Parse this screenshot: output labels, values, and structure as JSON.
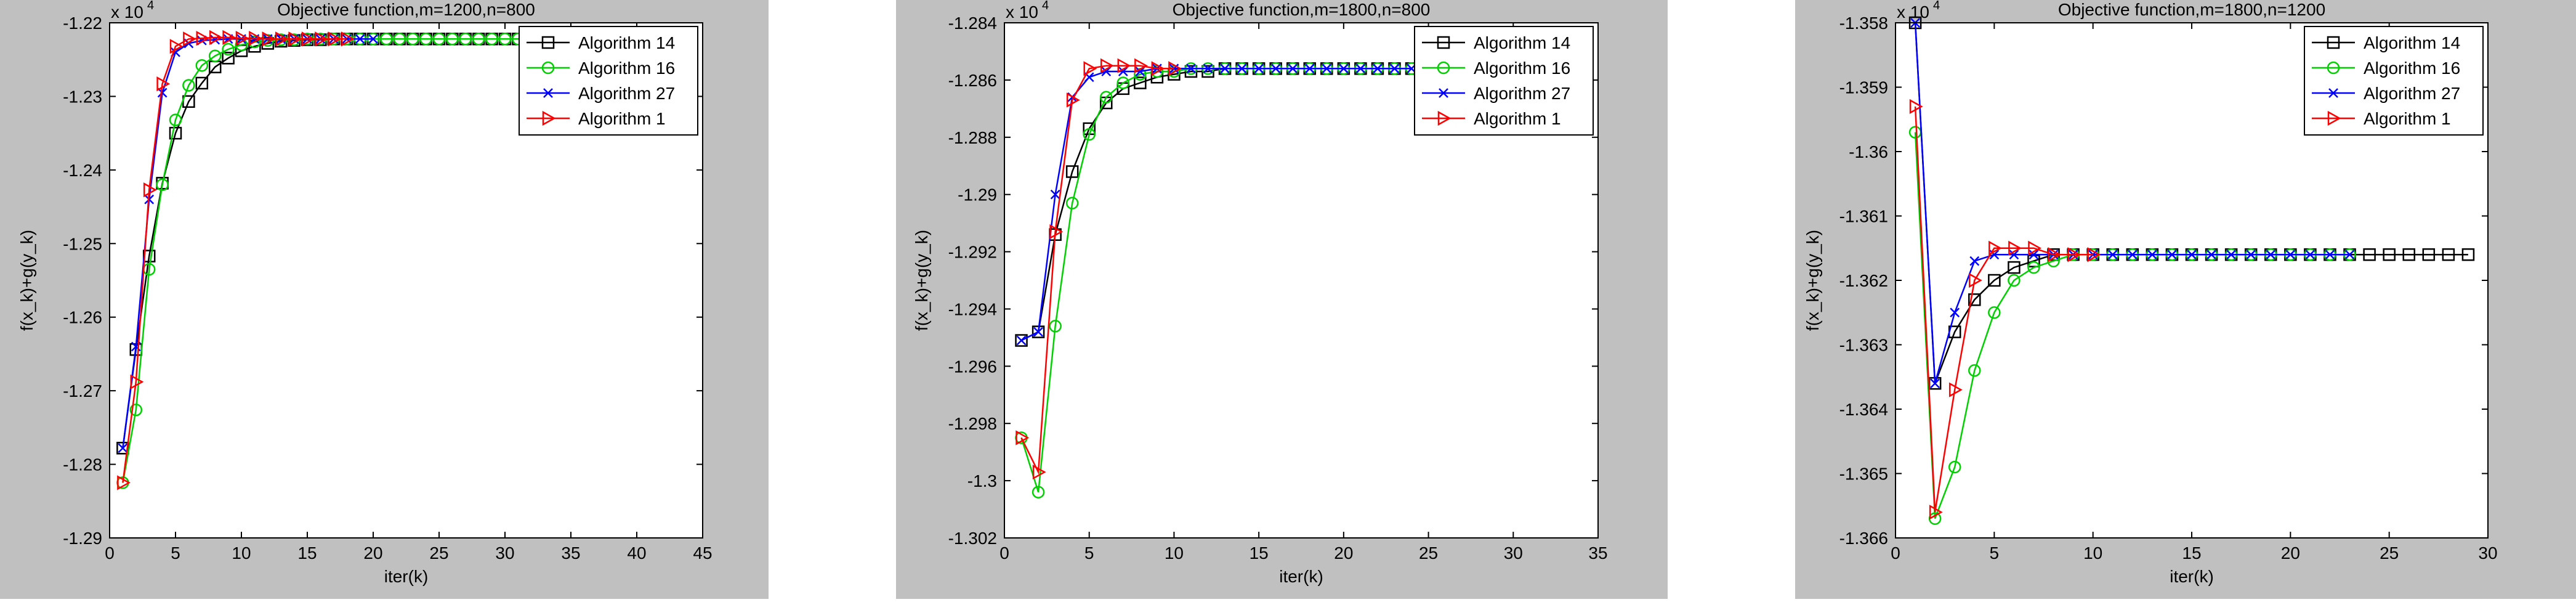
{
  "chart_data": [
    {
      "type": "line",
      "title": "Objective function,m=1200,n=800",
      "xlabel": "iter(k)",
      "ylabel": "f(x_k)+g(y_k)",
      "exponent_label": "x 10",
      "exponent_power": "4",
      "xlim": [
        0,
        45
      ],
      "ylim": [
        -1.29,
        -1.22
      ],
      "xticks": [
        0,
        5,
        10,
        15,
        20,
        25,
        30,
        35,
        40,
        45
      ],
      "yticks": [
        -1.29,
        -1.28,
        -1.27,
        -1.26,
        -1.25,
        -1.24,
        -1.23,
        -1.22
      ],
      "xtick_labels": [
        "0",
        "5",
        "10",
        "15",
        "20",
        "25",
        "30",
        "35",
        "40",
        "45"
      ],
      "ytick_labels": [
        "-1.29",
        "-1.28",
        "-1.27",
        "-1.26",
        "-1.25",
        "-1.24",
        "-1.23",
        "-1.22"
      ],
      "legend_position": "top-right",
      "series": [
        {
          "name": "Algorithm 14",
          "color": "#000000",
          "marker": "square",
          "x": [
            1,
            2,
            3,
            4,
            5,
            6,
            7,
            8,
            9,
            10,
            11,
            12,
            13,
            14,
            15,
            16,
            17,
            18,
            19,
            20,
            21,
            22,
            23,
            24,
            25,
            26,
            27,
            28,
            29,
            30,
            31,
            32,
            33,
            34,
            35,
            36,
            37,
            38,
            39,
            40,
            41
          ],
          "y": [
            -1.2778,
            -1.2644,
            -1.2517,
            -1.2418,
            -1.235,
            -1.2307,
            -1.2282,
            -1.226,
            -1.2248,
            -1.2238,
            -1.2232,
            -1.2228,
            -1.2225,
            -1.2224,
            -1.2223,
            -1.2223,
            -1.2222,
            -1.2222,
            -1.2222,
            -1.2222,
            -1.2222,
            -1.2222,
            -1.2222,
            -1.2222,
            -1.2222,
            -1.2222,
            -1.2222,
            -1.2222,
            -1.2222,
            -1.2222,
            -1.2222,
            -1.2222,
            -1.2222,
            -1.2222,
            -1.2222,
            -1.2222,
            -1.2222,
            -1.2222,
            -1.2222,
            -1.2222,
            -1.2222
          ]
        },
        {
          "name": "Algorithm 16",
          "color": "#00d000",
          "marker": "circle",
          "x": [
            1,
            2,
            3,
            4,
            5,
            6,
            7,
            8,
            9,
            10,
            11,
            12,
            13,
            14,
            15,
            16,
            17,
            18,
            19,
            20,
            21,
            22,
            23,
            24,
            25,
            26,
            27,
            28,
            29,
            30,
            31,
            32,
            33,
            34,
            35,
            36,
            37,
            38,
            39,
            40
          ],
          "y": [
            -1.2825,
            -1.2726,
            -1.2535,
            -1.242,
            -1.2332,
            -1.2285,
            -1.2258,
            -1.2245,
            -1.2236,
            -1.223,
            -1.2226,
            -1.2224,
            -1.2223,
            -1.2223,
            -1.2222,
            -1.2222,
            -1.2222,
            -1.2222,
            -1.2222,
            -1.2222,
            -1.2222,
            -1.2222,
            -1.2222,
            -1.2222,
            -1.2222,
            -1.2222,
            -1.2222,
            -1.2222,
            -1.2222,
            -1.2222,
            -1.2222,
            -1.2222,
            -1.2222,
            -1.2222,
            -1.2222,
            -1.2222,
            -1.2222,
            -1.2222,
            -1.2222,
            -1.2222
          ]
        },
        {
          "name": "Algorithm 27",
          "color": "#0000ff",
          "marker": "x",
          "x": [
            1,
            2,
            3,
            4,
            5,
            6,
            7,
            8,
            9,
            10,
            11,
            12,
            13,
            14,
            15,
            16,
            17,
            18,
            19,
            20
          ],
          "y": [
            -1.2778,
            -1.264,
            -1.244,
            -1.2295,
            -1.224,
            -1.2228,
            -1.2224,
            -1.2223,
            -1.2222,
            -1.2222,
            -1.2222,
            -1.2222,
            -1.2222,
            -1.2222,
            -1.2222,
            -1.2222,
            -1.2222,
            -1.2222,
            -1.2222,
            -1.2222
          ]
        },
        {
          "name": "Algorithm 1",
          "color": "#ff0000",
          "marker": "triangle-right",
          "x": [
            1,
            2,
            3,
            4,
            5,
            6,
            7,
            8,
            9,
            10,
            11,
            12,
            13,
            14,
            15,
            16,
            17,
            18
          ],
          "y": [
            -1.2825,
            -1.2688,
            -1.2427,
            -1.2283,
            -1.2232,
            -1.2222,
            -1.2221,
            -1.222,
            -1.222,
            -1.2221,
            -1.2221,
            -1.2222,
            -1.2222,
            -1.2222,
            -1.2222,
            -1.2222,
            -1.2222,
            -1.2222
          ]
        }
      ]
    },
    {
      "type": "line",
      "title": "Objective function,m=1800,n=800",
      "xlabel": "iter(k)",
      "ylabel": "f(x_k)+g(y_k)",
      "exponent_label": "x 10",
      "exponent_power": "4",
      "xlim": [
        0,
        35
      ],
      "ylim": [
        -1.302,
        -1.284
      ],
      "xticks": [
        0,
        5,
        10,
        15,
        20,
        25,
        30,
        35
      ],
      "yticks": [
        -1.302,
        -1.3,
        -1.298,
        -1.296,
        -1.294,
        -1.292,
        -1.29,
        -1.288,
        -1.286,
        -1.284
      ],
      "xtick_labels": [
        "0",
        "5",
        "10",
        "15",
        "20",
        "25",
        "30",
        "35"
      ],
      "ytick_labels": [
        "-1.302",
        "-1.3",
        "-1.298",
        "-1.296",
        "-1.294",
        "-1.292",
        "-1.29",
        "-1.288",
        "-1.286",
        "-1.284"
      ],
      "legend_position": "top-right",
      "series": [
        {
          "name": "Algorithm 14",
          "color": "#000000",
          "marker": "square",
          "x": [
            1,
            2,
            3,
            4,
            5,
            6,
            7,
            8,
            9,
            10,
            11,
            12,
            13,
            14,
            15,
            16,
            17,
            18,
            19,
            20,
            21,
            22,
            23,
            24
          ],
          "y": [
            -1.2951,
            -1.2948,
            -1.2914,
            -1.2892,
            -1.2877,
            -1.2868,
            -1.2863,
            -1.2861,
            -1.2859,
            -1.2858,
            -1.2857,
            -1.2857,
            -1.2856,
            -1.2856,
            -1.2856,
            -1.2856,
            -1.2856,
            -1.2856,
            -1.2856,
            -1.2856,
            -1.2856,
            -1.2856,
            -1.2856,
            -1.2856
          ]
        },
        {
          "name": "Algorithm 16",
          "color": "#00d000",
          "marker": "circle",
          "x": [
            1,
            2,
            3,
            4,
            5,
            6,
            7,
            8,
            9,
            10,
            11,
            12,
            13,
            14,
            15,
            16,
            17,
            18,
            19,
            20,
            21,
            22,
            23,
            24
          ],
          "y": [
            -1.2985,
            -1.3004,
            -1.2946,
            -1.2903,
            -1.2879,
            -1.2866,
            -1.2861,
            -1.2858,
            -1.2857,
            -1.2857,
            -1.2856,
            -1.2856,
            -1.2856,
            -1.2856,
            -1.2856,
            -1.2856,
            -1.2856,
            -1.2856,
            -1.2856,
            -1.2856,
            -1.2856,
            -1.2856,
            -1.2856,
            -1.2856
          ]
        },
        {
          "name": "Algorithm 27",
          "color": "#0000ff",
          "marker": "x",
          "x": [
            1,
            2,
            3,
            4,
            5,
            6,
            7,
            8,
            9,
            10,
            11,
            12,
            13,
            14,
            15,
            16,
            17,
            18,
            19,
            20,
            21,
            22,
            23,
            24
          ],
          "y": [
            -1.2951,
            -1.2948,
            -1.29,
            -1.2866,
            -1.2859,
            -1.2857,
            -1.2857,
            -1.2857,
            -1.2856,
            -1.2856,
            -1.2856,
            -1.2856,
            -1.2856,
            -1.2856,
            -1.2856,
            -1.2856,
            -1.2856,
            -1.2856,
            -1.2856,
            -1.2856,
            -1.2856,
            -1.2856,
            -1.2856,
            -1.2856
          ]
        },
        {
          "name": "Algorithm 1",
          "color": "#ff0000",
          "marker": "triangle-right",
          "x": [
            1,
            2,
            3,
            4,
            5,
            6,
            7,
            8,
            9,
            10
          ],
          "y": [
            -1.2985,
            -1.2997,
            -1.2913,
            -1.2867,
            -1.2856,
            -1.2855,
            -1.2855,
            -1.2855,
            -1.2856,
            -1.2856
          ]
        }
      ]
    },
    {
      "type": "line",
      "title": "Objective function,m=1800,n=1200",
      "xlabel": "iter(k)",
      "ylabel": "f(x_k)+g(y_k)",
      "exponent_label": "x 10",
      "exponent_power": "4",
      "xlim": [
        0,
        30
      ],
      "ylim": [
        -1.366,
        -1.358
      ],
      "xticks": [
        0,
        5,
        10,
        15,
        20,
        25,
        30
      ],
      "yticks": [
        -1.366,
        -1.365,
        -1.364,
        -1.363,
        -1.362,
        -1.361,
        -1.36,
        -1.359,
        -1.358
      ],
      "xtick_labels": [
        "0",
        "5",
        "10",
        "15",
        "20",
        "25",
        "30"
      ],
      "ytick_labels": [
        "-1.366",
        "-1.365",
        "-1.364",
        "-1.363",
        "-1.362",
        "-1.361",
        "-1.36",
        "-1.359",
        "-1.358"
      ],
      "legend_position": "top-right",
      "series": [
        {
          "name": "Algorithm 14",
          "color": "#000000",
          "marker": "square",
          "x": [
            1,
            2,
            3,
            4,
            5,
            6,
            7,
            8,
            9,
            10,
            11,
            12,
            13,
            14,
            15,
            16,
            17,
            18,
            19,
            20,
            21,
            22,
            23,
            24,
            25,
            26,
            27,
            28,
            29
          ],
          "y": [
            -1.358,
            -1.3636,
            -1.3628,
            -1.3623,
            -1.362,
            -1.3618,
            -1.3617,
            -1.3616,
            -1.3616,
            -1.3616,
            -1.3616,
            -1.3616,
            -1.3616,
            -1.3616,
            -1.3616,
            -1.3616,
            -1.3616,
            -1.3616,
            -1.3616,
            -1.3616,
            -1.3616,
            -1.3616,
            -1.3616,
            -1.3616,
            -1.3616,
            -1.3616,
            -1.3616,
            -1.3616,
            -1.3616
          ]
        },
        {
          "name": "Algorithm 16",
          "color": "#00d000",
          "marker": "circle",
          "x": [
            1,
            2,
            3,
            4,
            5,
            6,
            7,
            8,
            9,
            10,
            11,
            12,
            13,
            14,
            15,
            16,
            17,
            18,
            19,
            20,
            21,
            22,
            23
          ],
          "y": [
            -1.3597,
            -1.3657,
            -1.3649,
            -1.3634,
            -1.3625,
            -1.362,
            -1.3618,
            -1.3617,
            -1.3616,
            -1.3616,
            -1.3616,
            -1.3616,
            -1.3616,
            -1.3616,
            -1.3616,
            -1.3616,
            -1.3616,
            -1.3616,
            -1.3616,
            -1.3616,
            -1.3616,
            -1.3616,
            -1.3616
          ]
        },
        {
          "name": "Algorithm 27",
          "color": "#0000ff",
          "marker": "x",
          "x": [
            1,
            2,
            3,
            4,
            5,
            6,
            7,
            8,
            9,
            10,
            11,
            12,
            13,
            14,
            15,
            16,
            17,
            18,
            19,
            20,
            21,
            22,
            23
          ],
          "y": [
            -1.358,
            -1.3636,
            -1.3625,
            -1.3617,
            -1.3616,
            -1.3616,
            -1.3616,
            -1.3616,
            -1.3616,
            -1.3616,
            -1.3616,
            -1.3616,
            -1.3616,
            -1.3616,
            -1.3616,
            -1.3616,
            -1.3616,
            -1.3616,
            -1.3616,
            -1.3616,
            -1.3616,
            -1.3616,
            -1.3616
          ]
        },
        {
          "name": "Algorithm 1",
          "color": "#ff0000",
          "marker": "triangle-right",
          "x": [
            1,
            2,
            3,
            4,
            5,
            6,
            7,
            8,
            9,
            10
          ],
          "y": [
            -1.3593,
            -1.3656,
            -1.3637,
            -1.362,
            -1.3615,
            -1.3615,
            -1.3615,
            -1.3616,
            -1.3616,
            -1.3616
          ]
        }
      ]
    }
  ]
}
